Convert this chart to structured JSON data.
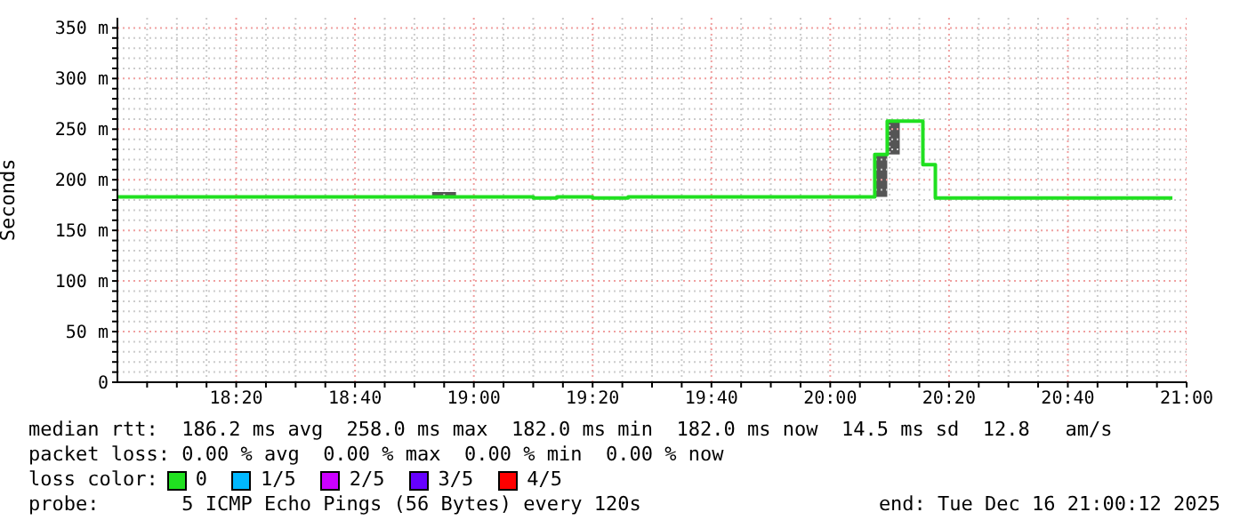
{
  "chart_data": {
    "type": "step",
    "ylabel": "Seconds",
    "x": [
      18.0,
      18.883,
      18.95,
      19.167,
      19.233,
      19.333,
      19.433,
      20.125,
      20.16,
      20.195,
      20.26,
      20.295,
      20.96
    ],
    "series": [
      {
        "name": "0",
        "color": "#20e020",
        "values": [
          183,
          183,
          183,
          182,
          183,
          182,
          183,
          225,
          258,
          258,
          215,
          182,
          182
        ],
        "lower": [
          183,
          183,
          183,
          182,
          183,
          182,
          183,
          183,
          225,
          258,
          215,
          182,
          182
        ],
        "upper": [
          183,
          188,
          183,
          182,
          183,
          182,
          183,
          225,
          258,
          258,
          215,
          182,
          182
        ]
      },
      {
        "name": "1/5",
        "color": "#00b8ff",
        "values": [
          null,
          null,
          null,
          null,
          null,
          null,
          null,
          null,
          null,
          null,
          null,
          null,
          null
        ]
      },
      {
        "name": "2/5",
        "color": "#cc00ff",
        "values": [
          null,
          null,
          null,
          null,
          null,
          null,
          null,
          null,
          null,
          null,
          null,
          null,
          null
        ]
      },
      {
        "name": "3/5",
        "color": "#6600ff",
        "values": [
          null,
          null,
          null,
          null,
          null,
          null,
          null,
          null,
          null,
          null,
          null,
          null,
          null
        ]
      },
      {
        "name": "4/5",
        "color": "#ff0000",
        "values": [
          null,
          null,
          null,
          null,
          null,
          null,
          null,
          null,
          null,
          null,
          null,
          null,
          null
        ]
      }
    ],
    "legend_title": "loss color:",
    "legend": "bottom",
    "grid": true,
    "marker": "none",
    "xlim": [
      18.0,
      21.0
    ],
    "xticks": [
      {
        "value": 18.0833,
        "label": null
      },
      {
        "value": 18.1667,
        "label": null
      },
      {
        "value": 18.25,
        "label": null
      },
      {
        "value": 18.3333,
        "label": "18:20"
      },
      {
        "value": 18.4167,
        "label": null
      },
      {
        "value": 18.5,
        "label": null
      },
      {
        "value": 18.5833,
        "label": null
      },
      {
        "value": 18.6667,
        "label": "18:40"
      },
      {
        "value": 18.75,
        "label": null
      },
      {
        "value": 18.8333,
        "label": null
      },
      {
        "value": 18.9167,
        "label": null
      },
      {
        "value": 19.0,
        "label": "19:00"
      },
      {
        "value": 19.0833,
        "label": null
      },
      {
        "value": 19.1667,
        "label": null
      },
      {
        "value": 19.25,
        "label": null
      },
      {
        "value": 19.3333,
        "label": "19:20"
      },
      {
        "value": 19.4167,
        "label": null
      },
      {
        "value": 19.5,
        "label": null
      },
      {
        "value": 19.5833,
        "label": null
      },
      {
        "value": 19.6667,
        "label": "19:40"
      },
      {
        "value": 19.75,
        "label": null
      },
      {
        "value": 19.8333,
        "label": null
      },
      {
        "value": 19.9167,
        "label": null
      },
      {
        "value": 20.0,
        "label": "20:00"
      },
      {
        "value": 20.0833,
        "label": null
      },
      {
        "value": 20.1667,
        "label": null
      },
      {
        "value": 20.25,
        "label": null
      },
      {
        "value": 20.3333,
        "label": "20:20"
      },
      {
        "value": 20.4167,
        "label": null
      },
      {
        "value": 20.5,
        "label": null
      },
      {
        "value": 20.5833,
        "label": null
      },
      {
        "value": 20.6667,
        "label": "20:40"
      },
      {
        "value": 20.75,
        "label": null
      },
      {
        "value": 20.8333,
        "label": null
      },
      {
        "value": 20.9167,
        "label": null
      },
      {
        "value": 21.0,
        "label": "21:00"
      }
    ],
    "ylim": [
      0,
      360
    ],
    "yticks": [
      0,
      {
        "value": 10,
        "label": null
      },
      {
        "value": 20,
        "label": null
      },
      {
        "value": 30,
        "label": null
      },
      {
        "value": 40,
        "label": null
      },
      {
        "value": 50,
        "label": "50 m"
      },
      {
        "value": 60,
        "label": null
      },
      {
        "value": 70,
        "label": null
      },
      {
        "value": 80,
        "label": null
      },
      {
        "value": 90,
        "label": null
      },
      {
        "value": 100,
        "label": "100 m"
      },
      {
        "value": 110,
        "label": null
      },
      {
        "value": 120,
        "label": null
      },
      {
        "value": 130,
        "label": null
      },
      {
        "value": 140,
        "label": null
      },
      {
        "value": 150,
        "label": "150 m"
      },
      {
        "value": 160,
        "label": null
      },
      {
        "value": 170,
        "label": null
      },
      {
        "value": 180,
        "label": null
      },
      {
        "value": 190,
        "label": null
      },
      {
        "value": 200,
        "label": "200 m"
      },
      {
        "value": 210,
        "label": null
      },
      {
        "value": 220,
        "label": null
      },
      {
        "value": 230,
        "label": null
      },
      {
        "value": 240,
        "label": null
      },
      {
        "value": 250,
        "label": "250 m"
      },
      {
        "value": 260,
        "label": null
      },
      {
        "value": 270,
        "label": null
      },
      {
        "value": 280,
        "label": null
      },
      {
        "value": 290,
        "label": null
      },
      {
        "value": 300,
        "label": "300 m"
      },
      {
        "value": 310,
        "label": null
      },
      {
        "value": 320,
        "label": null
      },
      {
        "value": 330,
        "label": null
      },
      {
        "value": 340,
        "label": null
      },
      {
        "value": 350,
        "label": "350 m"
      }
    ],
    "annotations": [
      "median rtt:  186.2 ms avg  258.0 ms max  182.0 ms min  182.0 ms now  14.5 ms sd  12.8   am/s",
      "packet loss: 0.00 % avg  0.00 % max  0.00 % min  0.00 % now",
      "probe:       5 ICMP Echo Pings (56 Bytes) every 120s",
      "end: Tue Dec 16 21:00:12 2025"
    ]
  }
}
